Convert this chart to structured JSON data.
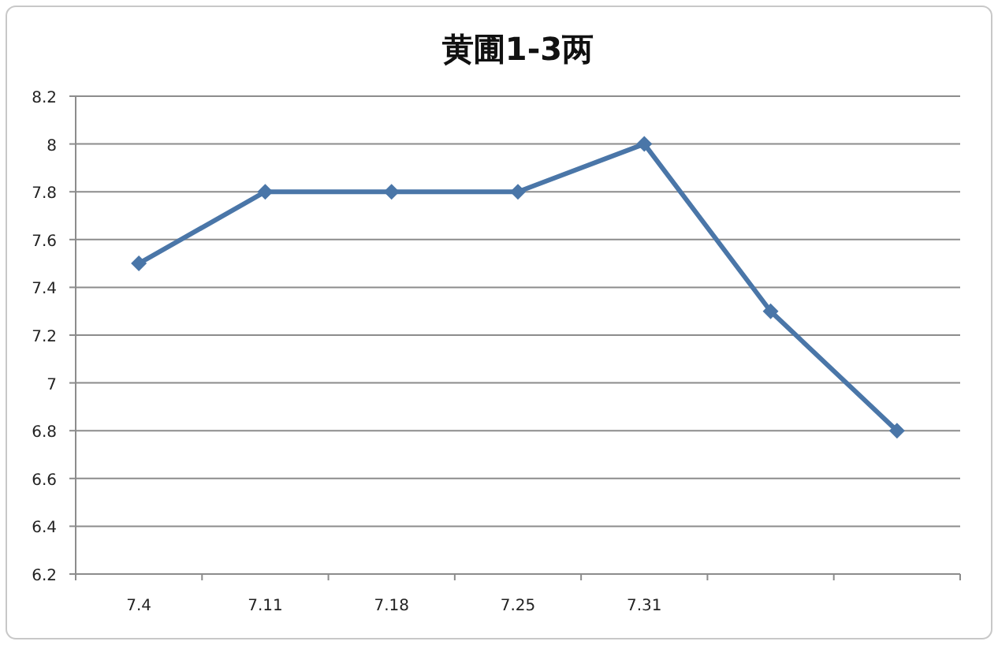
{
  "chart_data": {
    "type": "line",
    "title": "黄圃1-3两",
    "categories": [
      "7.4",
      "7.11",
      "7.18",
      "7.25",
      "7.31",
      null,
      null
    ],
    "series": [
      {
        "color": "#4a76a8",
        "values": [
          7.5,
          7.8,
          7.8,
          7.8,
          8.0,
          7.3,
          6.8
        ]
      }
    ],
    "ylim": [
      6.2,
      8.2
    ],
    "yticks": [
      6.2,
      6.4,
      6.6,
      6.8,
      7,
      7.2,
      7.4,
      7.6,
      7.8,
      8,
      8.2
    ],
    "grid": "y",
    "marker": "diamond"
  }
}
